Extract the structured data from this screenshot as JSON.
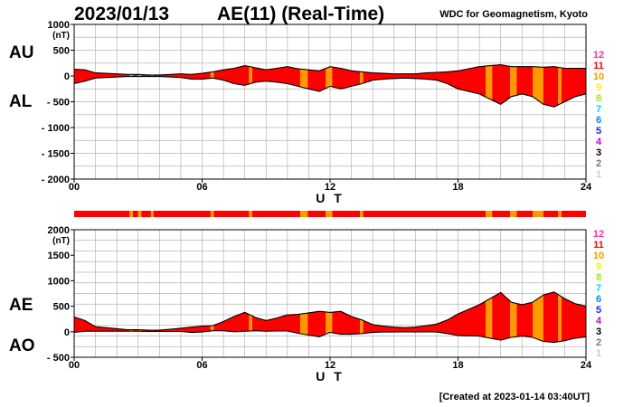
{
  "header": {
    "date": "2023/01/13",
    "title": "AE(11) (Real-Time)",
    "source": "WDC for Geomagnetism, Kyoto"
  },
  "footer": {
    "created": "[Created at 2023-01-14 03:40UT]"
  },
  "legend": {
    "entries": [
      {
        "label": "12",
        "color": "#ff3399"
      },
      {
        "label": "11",
        "color": "#ff0000"
      },
      {
        "label": "10",
        "color": "#ff9900"
      },
      {
        "label": "9",
        "color": "#ffee00"
      },
      {
        "label": "8",
        "color": "#99ee00"
      },
      {
        "label": "7",
        "color": "#00dddd"
      },
      {
        "label": "6",
        "color": "#0088ff"
      },
      {
        "label": "5",
        "color": "#2222ff"
      },
      {
        "label": "4",
        "color": "#cc00cc"
      },
      {
        "label": "3",
        "color": "#000000"
      },
      {
        "label": "2",
        "color": "#777777"
      },
      {
        "label": "1",
        "color": "#cccccc"
      }
    ]
  },
  "station_count_bar": {
    "colors": {
      "11": "#ff0000",
      "10": "#ff9900"
    },
    "segments": [
      {
        "start": 0.0,
        "end": 2.6,
        "count": 11
      },
      {
        "start": 2.6,
        "end": 2.75,
        "count": 10
      },
      {
        "start": 2.75,
        "end": 3.0,
        "count": 11
      },
      {
        "start": 3.0,
        "end": 3.15,
        "count": 10
      },
      {
        "start": 3.15,
        "end": 3.6,
        "count": 11
      },
      {
        "start": 3.6,
        "end": 3.72,
        "count": 10
      },
      {
        "start": 3.72,
        "end": 6.4,
        "count": 11
      },
      {
        "start": 6.4,
        "end": 6.55,
        "count": 10
      },
      {
        "start": 6.55,
        "end": 8.2,
        "count": 11
      },
      {
        "start": 8.2,
        "end": 8.35,
        "count": 10
      },
      {
        "start": 8.35,
        "end": 10.6,
        "count": 11
      },
      {
        "start": 10.6,
        "end": 10.95,
        "count": 10
      },
      {
        "start": 10.95,
        "end": 11.8,
        "count": 11
      },
      {
        "start": 11.8,
        "end": 12.1,
        "count": 10
      },
      {
        "start": 12.1,
        "end": 13.4,
        "count": 11
      },
      {
        "start": 13.4,
        "end": 13.55,
        "count": 10
      },
      {
        "start": 13.55,
        "end": 19.3,
        "count": 11
      },
      {
        "start": 19.3,
        "end": 19.6,
        "count": 10
      },
      {
        "start": 19.6,
        "end": 20.45,
        "count": 11
      },
      {
        "start": 20.45,
        "end": 20.75,
        "count": 10
      },
      {
        "start": 20.75,
        "end": 21.5,
        "count": 11
      },
      {
        "start": 21.5,
        "end": 22.0,
        "count": 10
      },
      {
        "start": 22.0,
        "end": 22.7,
        "count": 11
      },
      {
        "start": 22.7,
        "end": 22.85,
        "count": 10
      },
      {
        "start": 22.85,
        "end": 24.0,
        "count": 11
      }
    ]
  },
  "chart_data": [
    {
      "type": "area",
      "panel": "AU/AL",
      "ylabel_upper": "AU",
      "ylabel_lower": "AL",
      "unit": "(nT)",
      "xlabel": "U T",
      "xlim": [
        0,
        24
      ],
      "ylim": [
        -2000,
        1000
      ],
      "xticks": [
        0,
        6,
        12,
        18,
        24
      ],
      "xtick_labels": [
        "00",
        "06",
        "12",
        "18",
        "24"
      ],
      "yticks": [
        1000,
        500,
        0,
        -500,
        -1000,
        -1500,
        -2000
      ],
      "ytick_labels": [
        "1000",
        "500",
        "0",
        "- 500",
        "- 1000",
        "- 1500",
        "- 2000"
      ],
      "grid": true,
      "x": [
        0,
        0.5,
        1,
        1.5,
        2,
        2.5,
        3,
        3.5,
        4,
        4.5,
        5,
        5.5,
        6,
        6.5,
        7,
        7.5,
        8,
        8.5,
        9,
        9.5,
        10,
        10.5,
        11,
        11.5,
        12,
        12.5,
        13,
        13.5,
        14,
        14.5,
        15,
        15.5,
        16,
        16.5,
        17,
        17.5,
        18,
        18.5,
        19,
        19.5,
        20,
        20.5,
        21,
        21.5,
        22,
        22.5,
        23,
        23.5,
        24
      ],
      "series": [
        {
          "name": "AU",
          "values": [
            130,
            120,
            60,
            50,
            40,
            30,
            30,
            20,
            20,
            30,
            40,
            30,
            50,
            80,
            120,
            150,
            200,
            160,
            120,
            150,
            180,
            140,
            120,
            100,
            180,
            150,
            100,
            80,
            60,
            50,
            40,
            40,
            40,
            60,
            70,
            80,
            100,
            140,
            180,
            200,
            220,
            180,
            180,
            180,
            170,
            180,
            150,
            150,
            150
          ]
        },
        {
          "name": "AL",
          "values": [
            -150,
            -100,
            -40,
            -30,
            -20,
            -10,
            -10,
            -10,
            -10,
            -20,
            -30,
            -60,
            -60,
            -40,
            -80,
            -150,
            -180,
            -120,
            -100,
            -120,
            -150,
            -200,
            -250,
            -300,
            -200,
            -250,
            -200,
            -150,
            -80,
            -60,
            -50,
            -40,
            -50,
            -60,
            -80,
            -150,
            -250,
            -300,
            -350,
            -450,
            -550,
            -400,
            -350,
            -400,
            -550,
            -600,
            -500,
            -400,
            -350
          ]
        }
      ]
    },
    {
      "type": "area",
      "panel": "AE/AO",
      "ylabel_upper": "AE",
      "ylabel_lower": "AO",
      "unit": "(nT)",
      "xlabel": "U T",
      "xlim": [
        0,
        24
      ],
      "ylim": [
        -500,
        2000
      ],
      "xticks": [
        0,
        6,
        12,
        18,
        24
      ],
      "xtick_labels": [
        "00",
        "06",
        "12",
        "18",
        "24"
      ],
      "yticks": [
        2000,
        1500,
        1000,
        500,
        0,
        -500
      ],
      "ytick_labels": [
        "2000",
        "1500",
        "1000",
        "500",
        "0",
        "- 500"
      ],
      "grid": true,
      "x": [
        0,
        0.5,
        1,
        1.5,
        2,
        2.5,
        3,
        3.5,
        4,
        4.5,
        5,
        5.5,
        6,
        6.5,
        7,
        7.5,
        8,
        8.5,
        9,
        9.5,
        10,
        10.5,
        11,
        11.5,
        12,
        12.5,
        13,
        13.5,
        14,
        14.5,
        15,
        15.5,
        16,
        16.5,
        17,
        17.5,
        18,
        18.5,
        19,
        19.5,
        20,
        20.5,
        21,
        21.5,
        22,
        22.5,
        23,
        23.5,
        24
      ],
      "series": [
        {
          "name": "AE",
          "values": [
            290,
            220,
            100,
            80,
            60,
            40,
            40,
            30,
            30,
            50,
            70,
            90,
            110,
            120,
            200,
            300,
            380,
            280,
            220,
            270,
            330,
            340,
            370,
            400,
            380,
            400,
            300,
            230,
            140,
            110,
            90,
            80,
            90,
            120,
            150,
            230,
            350,
            440,
            530,
            650,
            770,
            580,
            530,
            580,
            720,
            780,
            650,
            550,
            500
          ]
        },
        {
          "name": "AO",
          "values": [
            -10,
            10,
            10,
            10,
            10,
            10,
            10,
            5,
            5,
            5,
            5,
            -15,
            -5,
            20,
            20,
            0,
            10,
            20,
            10,
            15,
            15,
            -30,
            -65,
            -100,
            -10,
            -50,
            -50,
            -35,
            -10,
            -5,
            -5,
            0,
            -5,
            0,
            -5,
            -35,
            -75,
            -80,
            -85,
            -125,
            -165,
            -110,
            -85,
            -110,
            -190,
            -210,
            -175,
            -125,
            -100
          ]
        }
      ]
    }
  ]
}
